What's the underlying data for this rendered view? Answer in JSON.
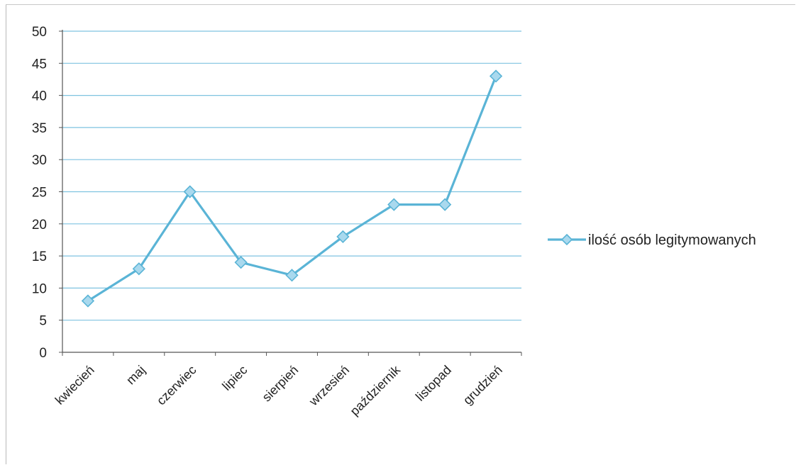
{
  "chart_data": {
    "type": "line",
    "categories": [
      "kwiecień",
      "maj",
      "czerwiec",
      "lipiec",
      "sierpień",
      "wrzesień",
      "październik",
      "listopad",
      "grudzień"
    ],
    "series": [
      {
        "name": "ilość osób legitymowanych",
        "values": [
          8,
          13,
          25,
          14,
          12,
          18,
          23,
          23,
          43
        ],
        "color": "#5ab4d6",
        "marker": "diamond"
      }
    ],
    "ylim": [
      0,
      50
    ],
    "yticks": [
      0,
      5,
      10,
      15,
      20,
      25,
      30,
      35,
      40,
      45,
      50
    ],
    "grid": true,
    "legend_position": "right",
    "gridline_color": "#7fc3e0"
  }
}
